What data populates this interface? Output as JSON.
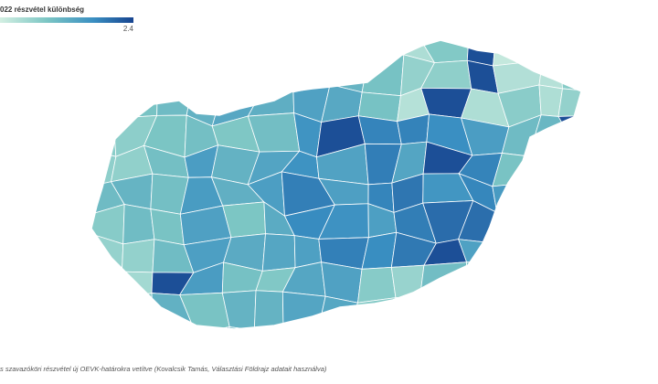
{
  "legend": {
    "title": "022 részvétel különbség",
    "max_label": "2.4"
  },
  "footer": {
    "source": "s szavazóköri részvétel új OEVK-határokra vetítve (Kovalcsik Tamás, Választási Földrajz adatait használva)"
  }
}
